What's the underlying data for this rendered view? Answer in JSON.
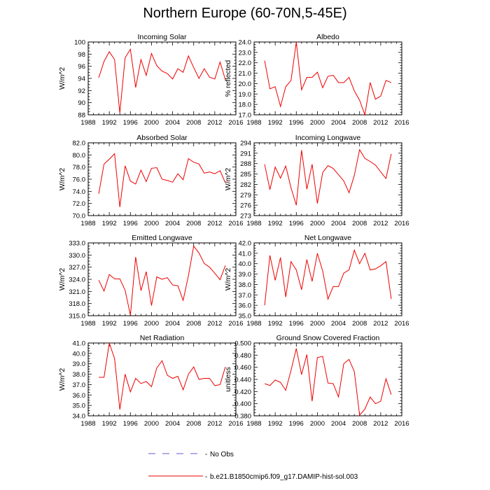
{
  "title": "Northern Europe (60-70N,5-45E)",
  "legend": {
    "obs_label": "No Obs",
    "model_label": "b.e21.B1850cmip6.f09_g17.DAMIP-hist-sol.003",
    "model_color": "#ee0000",
    "obs_color": "#6a5acd"
  },
  "chart_data": [
    {
      "type": "line",
      "title": "Incoming Solar",
      "xlabel": "",
      "ylabel": "W/m^2",
      "xlim": [
        1988,
        2016
      ],
      "ylim": [
        88,
        100
      ],
      "xticks": [
        "1988",
        "1992",
        "1996",
        "2000",
        "2004",
        "2008",
        "2012",
        "2016"
      ],
      "yticks": [
        "88",
        "90",
        "92",
        "94",
        "96",
        "98",
        "100"
      ],
      "x": [
        1990,
        1991,
        1992,
        1993,
        1994,
        1995,
        1996,
        1997,
        1998,
        1999,
        2000,
        2001,
        2002,
        2003,
        2004,
        2005,
        2006,
        2007,
        2008,
        2009,
        2010,
        2011,
        2012,
        2013,
        2014
      ],
      "values": [
        94.1,
        96.8,
        98.4,
        97.1,
        88.3,
        97.4,
        98.8,
        92.5,
        97.1,
        94.5,
        98.1,
        96.1,
        95.2,
        94.8,
        93.9,
        95.6,
        95.0,
        97.7,
        95.8,
        94.0,
        95.6,
        94.2,
        93.9,
        96.7,
        93.8
      ]
    },
    {
      "type": "line",
      "title": "Albedo",
      "xlabel": "",
      "ylabel": "% reflected",
      "xlim": [
        1988,
        2016
      ],
      "ylim": [
        17.0,
        24.0
      ],
      "xticks": [
        "1988",
        "1992",
        "1996",
        "2000",
        "2004",
        "2008",
        "2012",
        "2016"
      ],
      "yticks": [
        "17.0",
        "18.0",
        "19.0",
        "20.0",
        "21.0",
        "22.0",
        "23.0",
        "24.0"
      ],
      "x": [
        1990,
        1991,
        1992,
        1993,
        1994,
        1995,
        1996,
        1997,
        1998,
        1999,
        2000,
        2001,
        2002,
        2003,
        2004,
        2005,
        2006,
        2007,
        2008,
        2009,
        2010,
        2011,
        2012,
        2013,
        2014
      ],
      "values": [
        22.2,
        19.5,
        19.7,
        17.8,
        19.7,
        20.3,
        24.0,
        19.4,
        20.6,
        20.6,
        21.1,
        19.6,
        20.7,
        20.8,
        20.1,
        20.1,
        20.6,
        19.3,
        18.4,
        17.0,
        20.1,
        18.5,
        18.8,
        20.3,
        20.1
      ]
    },
    {
      "type": "line",
      "title": "Absorbed Solar",
      "xlabel": "",
      "ylabel": "W/m^2",
      "xlim": [
        1988,
        2016
      ],
      "ylim": [
        70.0,
        82.0
      ],
      "xticks": [
        "1988",
        "1992",
        "1996",
        "2000",
        "2004",
        "2008",
        "2012",
        "2016"
      ],
      "yticks": [
        "70.0",
        "72.0",
        "74.0",
        "76.0",
        "78.0",
        "80.0",
        "82.0"
      ],
      "x": [
        1990,
        1991,
        1992,
        1993,
        1994,
        1995,
        1996,
        1997,
        1998,
        1999,
        2000,
        2001,
        2002,
        2003,
        2004,
        2005,
        2006,
        2007,
        2008,
        2009,
        2010,
        2011,
        2012,
        2013,
        2014
      ],
      "values": [
        73.6,
        78.5,
        79.3,
        80.2,
        71.4,
        78.2,
        75.7,
        75.2,
        77.5,
        75.6,
        77.8,
        77.9,
        76.0,
        75.8,
        75.5,
        76.9,
        75.9,
        79.4,
        78.8,
        78.5,
        77.0,
        77.2,
        76.9,
        77.4,
        75.4
      ]
    },
    {
      "type": "line",
      "title": "Incoming Longwave",
      "xlabel": "",
      "ylabel": "W/m^2",
      "xlim": [
        1988,
        2016
      ],
      "ylim": [
        273,
        294
      ],
      "xticks": [
        "1988",
        "1992",
        "1996",
        "2000",
        "2004",
        "2008",
        "2012",
        "2016"
      ],
      "yticks": [
        "273",
        "276",
        "279",
        "282",
        "285",
        "288",
        "291",
        "294"
      ],
      "x": [
        1990,
        1991,
        1992,
        1993,
        1994,
        1995,
        1996,
        1997,
        1998,
        1999,
        2000,
        2001,
        2002,
        2003,
        2004,
        2005,
        2006,
        2007,
        2008,
        2009,
        2010,
        2011,
        2012,
        2013,
        2014
      ],
      "values": [
        287.8,
        280.5,
        287.0,
        283.8,
        287.3,
        281.0,
        276.0,
        291.9,
        280.6,
        287.8,
        276.5,
        285.4,
        287.4,
        286.6,
        284.8,
        283.0,
        279.6,
        284.6,
        292.0,
        289.5,
        288.6,
        287.6,
        285.6,
        283.7,
        290.8
      ]
    },
    {
      "type": "line",
      "title": "Emitted Longwave",
      "xlabel": "",
      "ylabel": "W/m^2",
      "xlim": [
        1988,
        2016
      ],
      "ylim": [
        315.0,
        333.0
      ],
      "xticks": [
        "1988",
        "1992",
        "1996",
        "2000",
        "2004",
        "2008",
        "2012",
        "2016"
      ],
      "yticks": [
        "315.0",
        "318.0",
        "321.0",
        "324.0",
        "327.0",
        "330.0",
        "333.0"
      ],
      "x": [
        1990,
        1991,
        1992,
        1993,
        1994,
        1995,
        1996,
        1997,
        1998,
        1999,
        2000,
        2001,
        2002,
        2003,
        2004,
        2005,
        2006,
        2007,
        2008,
        2009,
        2010,
        2011,
        2012,
        2013,
        2014
      ],
      "values": [
        323.8,
        321.1,
        325.2,
        324.1,
        324.1,
        321.3,
        315.1,
        329.5,
        321.2,
        325.9,
        317.5,
        324.6,
        324.0,
        324.4,
        322.6,
        322.4,
        318.8,
        324.9,
        332.2,
        330.5,
        327.9,
        327.0,
        325.5,
        323.9,
        327.4
      ]
    },
    {
      "type": "line",
      "title": "Net Longwave",
      "xlabel": "",
      "ylabel": "W/m^2",
      "xlim": [
        1988,
        2016
      ],
      "ylim": [
        35.0,
        42.0
      ],
      "xticks": [
        "1988",
        "1992",
        "1996",
        "2000",
        "2004",
        "2008",
        "2012",
        "2016"
      ],
      "yticks": [
        "35.0",
        "36.0",
        "37.0",
        "38.0",
        "39.0",
        "40.0",
        "41.0",
        "42.0"
      ],
      "x": [
        1990,
        1991,
        1992,
        1993,
        1994,
        1995,
        1996,
        1997,
        1998,
        1999,
        2000,
        2001,
        2002,
        2003,
        2004,
        2005,
        2006,
        2007,
        2008,
        2009,
        2010,
        2011,
        2012,
        2013,
        2014
      ],
      "values": [
        36.0,
        40.8,
        38.4,
        40.6,
        36.8,
        40.2,
        39.4,
        37.5,
        40.4,
        38.3,
        41.0,
        39.3,
        36.6,
        37.8,
        37.8,
        39.1,
        39.4,
        41.3,
        40.0,
        41.0,
        39.4,
        39.5,
        39.8,
        40.2,
        36.6
      ]
    },
    {
      "type": "line",
      "title": "Net Radiation",
      "xlabel": "",
      "ylabel": "W/m^2",
      "xlim": [
        1988,
        2016
      ],
      "ylim": [
        34.0,
        41.0
      ],
      "xticks": [
        "1988",
        "1992",
        "1996",
        "2000",
        "2004",
        "2008",
        "2012",
        "2016"
      ],
      "yticks": [
        "34.0",
        "35.0",
        "36.0",
        "37.0",
        "38.0",
        "39.0",
        "40.0",
        "41.0"
      ],
      "x": [
        1990,
        1991,
        1992,
        1993,
        1994,
        1995,
        1996,
        1997,
        1998,
        1999,
        2000,
        2001,
        2002,
        2003,
        2004,
        2005,
        2006,
        2007,
        2008,
        2009,
        2010,
        2011,
        2012,
        2013,
        2014
      ],
      "values": [
        37.7,
        37.7,
        41.0,
        39.5,
        34.6,
        38.0,
        36.3,
        37.6,
        37.1,
        37.3,
        36.8,
        38.6,
        39.3,
        37.9,
        37.6,
        37.8,
        36.5,
        38.0,
        38.7,
        37.5,
        37.6,
        37.6,
        36.9,
        37.0,
        38.7
      ]
    },
    {
      "type": "line",
      "title": "Ground Snow Covered Fraction",
      "xlabel": "",
      "ylabel": "unitless",
      "xlim": [
        1988,
        2016
      ],
      "ylim": [
        0.38,
        0.5
      ],
      "xticks": [
        "1988",
        "1992",
        "1996",
        "2000",
        "2004",
        "2008",
        "2012",
        "2016"
      ],
      "yticks": [
        "0.380",
        "0.400",
        "0.420",
        "0.440",
        "0.460",
        "0.480",
        "0.500"
      ],
      "x": [
        1990,
        1991,
        1992,
        1993,
        1994,
        1995,
        1996,
        1997,
        1998,
        1999,
        2000,
        2001,
        2002,
        2003,
        2004,
        2005,
        2006,
        2007,
        2008,
        2009,
        2010,
        2011,
        2012,
        2013,
        2014
      ],
      "values": [
        0.433,
        0.43,
        0.439,
        0.435,
        0.422,
        0.455,
        0.491,
        0.448,
        0.481,
        0.404,
        0.476,
        0.478,
        0.434,
        0.433,
        0.411,
        0.466,
        0.473,
        0.453,
        0.381,
        0.391,
        0.411,
        0.4,
        0.404,
        0.441,
        0.415
      ]
    }
  ]
}
